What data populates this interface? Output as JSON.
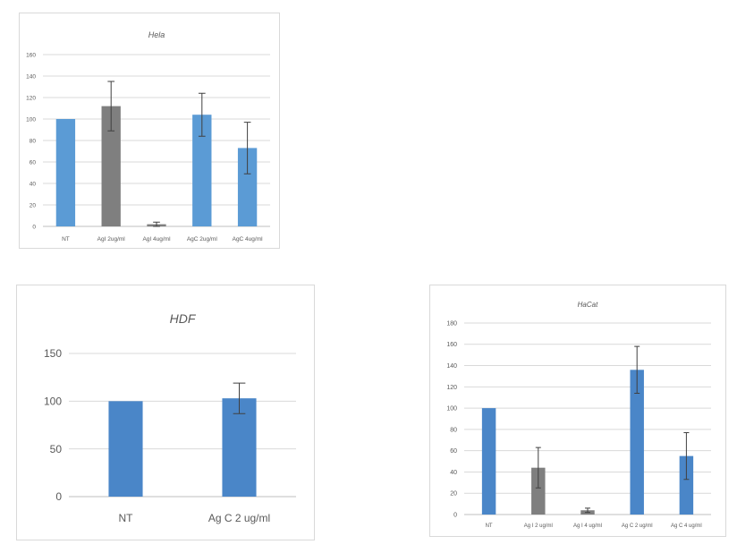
{
  "colors": {
    "blue_light": "#5b9bd5",
    "blue_dark": "#4a86c8",
    "grey": "#7f7f7f"
  },
  "chart_data": [
    {
      "id": "hela",
      "type": "bar",
      "title": "Hela",
      "categories": [
        "NT",
        "AgI 2ug/ml",
        "AgI 4ug/ml",
        "AgC 2ug/ml",
        "AgC 4ug/ml"
      ],
      "values": [
        100,
        112,
        2,
        104,
        73
      ],
      "errors": [
        0,
        23,
        2,
        20,
        24
      ],
      "colors": [
        "blue_light",
        "grey",
        "grey",
        "blue_light",
        "blue_light"
      ],
      "ylim": [
        0,
        160
      ],
      "yticks": [
        0,
        20,
        40,
        60,
        80,
        100,
        120,
        140,
        160
      ],
      "grid": true
    },
    {
      "id": "hdf",
      "type": "bar",
      "title": "HDF",
      "categories": [
        "NT",
        "Ag C 2 ug/ml"
      ],
      "values": [
        100,
        103
      ],
      "errors": [
        0,
        16
      ],
      "colors": [
        "blue_dark",
        "blue_dark"
      ],
      "ylim": [
        0,
        150
      ],
      "yticks": [
        0,
        50,
        100,
        150
      ],
      "grid": true
    },
    {
      "id": "hacat",
      "type": "bar",
      "title": "HaCat",
      "categories": [
        "NT",
        "Ag I 2 ug/ml",
        "Ag I 4 ug/ml",
        "Ag C 2 ug/ml",
        "Ag C 4 ug/ml"
      ],
      "values": [
        100,
        44,
        4,
        136,
        55
      ],
      "errors": [
        0,
        19,
        2,
        22,
        22
      ],
      "colors": [
        "blue_dark",
        "grey",
        "grey",
        "blue_dark",
        "blue_dark"
      ],
      "ylim": [
        0,
        180
      ],
      "yticks": [
        0,
        20,
        40,
        60,
        80,
        100,
        120,
        140,
        160,
        180
      ],
      "grid": true
    }
  ]
}
